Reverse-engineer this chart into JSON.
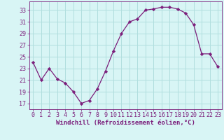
{
  "x": [
    0,
    1,
    2,
    3,
    4,
    5,
    6,
    7,
    8,
    9,
    10,
    11,
    12,
    13,
    14,
    15,
    16,
    17,
    18,
    19,
    20,
    21,
    22,
    23
  ],
  "y": [
    24.0,
    21.0,
    23.0,
    21.2,
    20.5,
    19.0,
    17.0,
    17.5,
    19.5,
    22.5,
    26.0,
    29.0,
    31.0,
    31.5,
    33.0,
    33.2,
    33.5,
    33.5,
    33.2,
    32.5,
    30.5,
    25.5,
    25.5,
    23.3
  ],
  "line_color": "#7B1E7B",
  "marker": "D",
  "marker_size": 2.2,
  "bg_color": "#d8f5f5",
  "grid_color": "#b0dede",
  "xlabel": "Windchill (Refroidissement éolien,°C)",
  "xlabel_color": "#7B1E7B",
  "xlabel_fontsize": 6.5,
  "tick_color": "#7B1E7B",
  "tick_fontsize": 6,
  "yticks": [
    17,
    19,
    21,
    23,
    25,
    27,
    29,
    31,
    33
  ],
  "xticks": [
    0,
    1,
    2,
    3,
    4,
    5,
    6,
    7,
    8,
    9,
    10,
    11,
    12,
    13,
    14,
    15,
    16,
    17,
    18,
    19,
    20,
    21,
    22,
    23
  ],
  "ylim": [
    16.0,
    34.5
  ],
  "xlim": [
    -0.5,
    23.5
  ]
}
